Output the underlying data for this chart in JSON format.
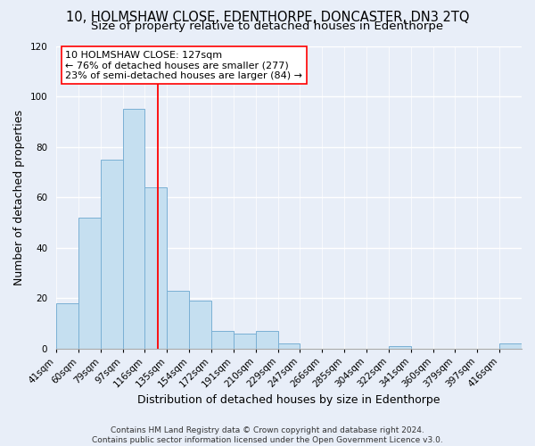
{
  "title": "10, HOLMSHAW CLOSE, EDENTHORPE, DONCASTER, DN3 2TQ",
  "subtitle": "Size of property relative to detached houses in Edenthorpe",
  "xlabel": "Distribution of detached houses by size in Edenthorpe",
  "ylabel": "Number of detached properties",
  "bar_labels": [
    "41sqm",
    "60sqm",
    "79sqm",
    "97sqm",
    "116sqm",
    "135sqm",
    "154sqm",
    "172sqm",
    "191sqm",
    "210sqm",
    "229sqm",
    "247sqm",
    "266sqm",
    "285sqm",
    "304sqm",
    "322sqm",
    "341sqm",
    "360sqm",
    "379sqm",
    "397sqm",
    "416sqm"
  ],
  "bar_values": [
    18,
    52,
    75,
    95,
    64,
    23,
    19,
    7,
    6,
    7,
    2,
    0,
    0,
    0,
    0,
    1,
    0,
    0,
    0,
    0,
    2
  ],
  "bar_color": "#c5dff0",
  "bar_edge_color": "#7ab0d4",
  "ylim": [
    0,
    120
  ],
  "yticks": [
    0,
    20,
    40,
    60,
    80,
    100,
    120
  ],
  "property_label": "10 HOLMSHAW CLOSE: 127sqm",
  "annotation_line1": "← 76% of detached houses are smaller (277)",
  "annotation_line2": "23% of semi-detached houses are larger (84) →",
  "footer1": "Contains HM Land Registry data © Crown copyright and database right 2024.",
  "footer2": "Contains public sector information licensed under the Open Government Licence v3.0.",
  "bg_color": "#e8eef8",
  "grid_color": "#ffffff",
  "title_fontsize": 10.5,
  "subtitle_fontsize": 9.5,
  "axis_label_fontsize": 9,
  "tick_fontsize": 7.5,
  "annotation_fontsize": 8,
  "footer_fontsize": 6.5
}
